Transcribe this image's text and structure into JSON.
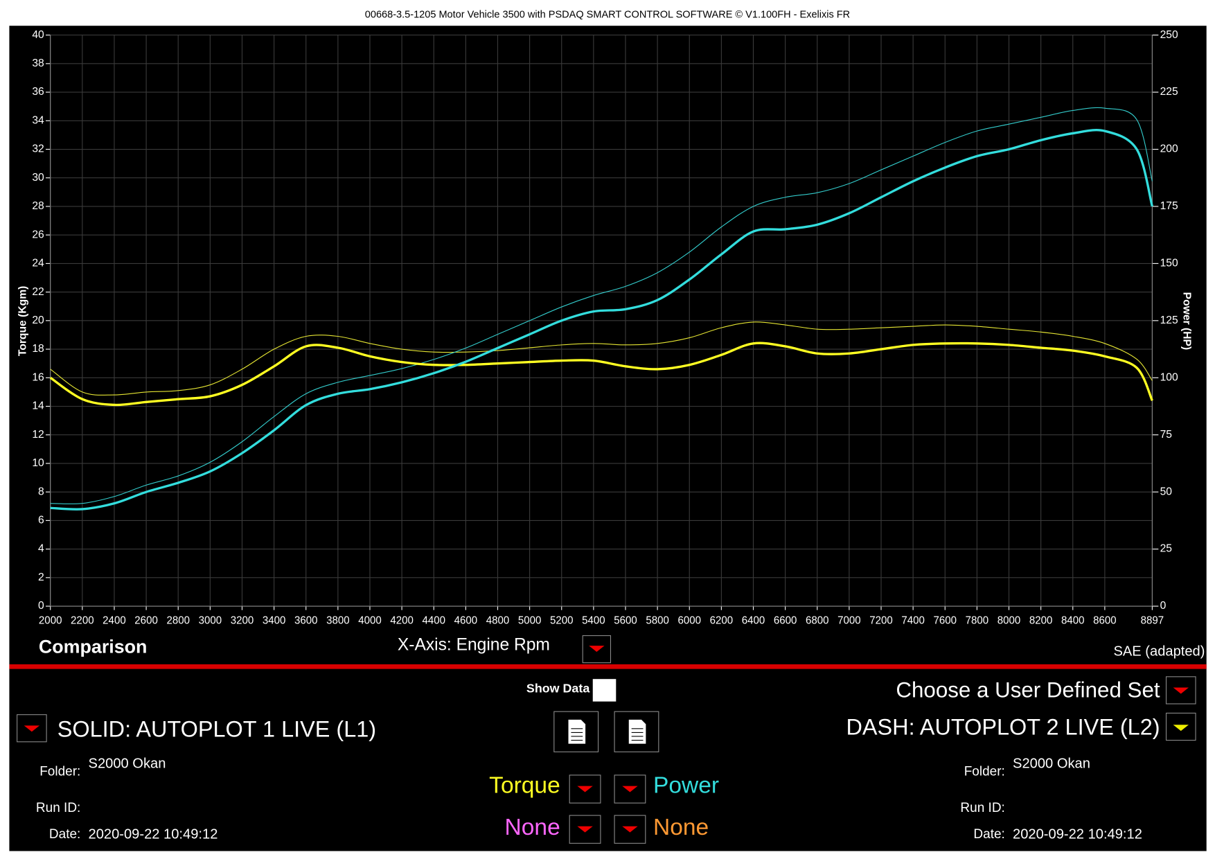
{
  "chart_data": {
    "type": "line",
    "title": "00668-3.5-1205 Motor Vehicle 3500 with PSDAQ SMART CONTROL SOFTWARE © V1.100FH - Exelixis FR",
    "xlabel": "X-Axis: Engine Rpm",
    "ylabel": "Torque (Kgm)",
    "y2label": "Power (HP)",
    "x": [
      2000,
      2200,
      2400,
      2600,
      2800,
      3000,
      3200,
      3400,
      3600,
      3800,
      4000,
      4200,
      4400,
      4600,
      4800,
      5000,
      5200,
      5400,
      5600,
      5800,
      6000,
      6200,
      6400,
      6600,
      6800,
      7000,
      7200,
      7400,
      7600,
      7800,
      8000,
      8200,
      8400,
      8600,
      8800,
      8897
    ],
    "xlim": [
      2000,
      8897
    ],
    "xticks": [
      2000,
      2200,
      2400,
      2600,
      2800,
      3000,
      3200,
      3400,
      3600,
      3800,
      4000,
      4200,
      4400,
      4600,
      4800,
      5000,
      5200,
      5400,
      5600,
      5800,
      6000,
      6200,
      6400,
      6600,
      6800,
      7000,
      7200,
      7400,
      7600,
      7800,
      8000,
      8200,
      8400,
      8600,
      8897
    ],
    "ylim": [
      0,
      40
    ],
    "yticks": [
      0,
      2,
      4,
      6,
      8,
      10,
      12,
      14,
      16,
      18,
      20,
      22,
      24,
      26,
      28,
      30,
      32,
      34,
      36,
      38,
      40
    ],
    "y2lim": [
      0,
      250
    ],
    "y2ticks": [
      0,
      25,
      50,
      75,
      100,
      125,
      150,
      175,
      200,
      225,
      250
    ],
    "grid": true,
    "series": [
      {
        "name": "Torque",
        "color": "#ffff22",
        "linewidth": 3,
        "values": [
          16.0,
          14.5,
          14.1,
          14.3,
          14.5,
          14.7,
          15.5,
          16.8,
          18.2,
          18.1,
          17.5,
          17.1,
          16.9,
          16.9,
          17.0,
          17.1,
          17.2,
          17.2,
          16.8,
          16.6,
          16.9,
          17.6,
          18.4,
          18.2,
          17.7,
          17.7,
          18.0,
          18.3,
          18.4,
          18.4,
          18.3,
          18.1,
          17.9,
          17.5,
          16.7,
          14.4
        ]
      },
      {
        "name": "Power",
        "color": "#33dddd",
        "linewidth": 3,
        "axis": "y2",
        "values": [
          43,
          42.5,
          45,
          50,
          54,
          59,
          67,
          77,
          88,
          93,
          95,
          98,
          102,
          107,
          113,
          119,
          125,
          129,
          130,
          134,
          143,
          154,
          164,
          165,
          167,
          172,
          179,
          186,
          192,
          197,
          200,
          204,
          207,
          208,
          200,
          175
        ]
      },
      {
        "color": "#e6e633",
        "linewidth": 1,
        "values": [
          16.6,
          15.0,
          14.8,
          15.0,
          15.1,
          15.5,
          16.6,
          18.0,
          18.9,
          18.9,
          18.4,
          18.0,
          17.8,
          17.8,
          17.9,
          18.1,
          18.3,
          18.4,
          18.3,
          18.4,
          18.8,
          19.5,
          19.9,
          19.7,
          19.4,
          19.4,
          19.5,
          19.6,
          19.7,
          19.6,
          19.4,
          19.2,
          18.9,
          18.4,
          17.3,
          15.8
        ]
      },
      {
        "color": "#33cccc",
        "linewidth": 1,
        "axis": "y2",
        "values": [
          45,
          45,
          48,
          53,
          57,
          63,
          72,
          83,
          93,
          98,
          101,
          104,
          108,
          113,
          119,
          125,
          131,
          136,
          140,
          146,
          155,
          166,
          175,
          179,
          181,
          185,
          191,
          197,
          203,
          208,
          211,
          214,
          217,
          218,
          213,
          186
        ]
      }
    ]
  },
  "ui": {
    "mode": "Comparison",
    "standard": "SAE (adapted)",
    "show_data": "Show Data",
    "user_set": "Choose a User Defined Set",
    "left": {
      "label": "SOLID: AUTOPLOT 1 LIVE (L1)",
      "folder_label": "Folder:",
      "folder": "S2000 Okan",
      "run_label": "Run ID:",
      "date_label": "Date:",
      "date": "2020-09-22 10:49:12"
    },
    "right": {
      "label": "DASH: AUTOPLOT 2 LIVE (L2)",
      "folder_label": "Folder:",
      "folder": "S2000 Okan",
      "run_label": "Run ID:",
      "date_label": "Date:",
      "date": "2020-09-22 10:49:12"
    },
    "none_left": "None",
    "none_right": "None"
  }
}
